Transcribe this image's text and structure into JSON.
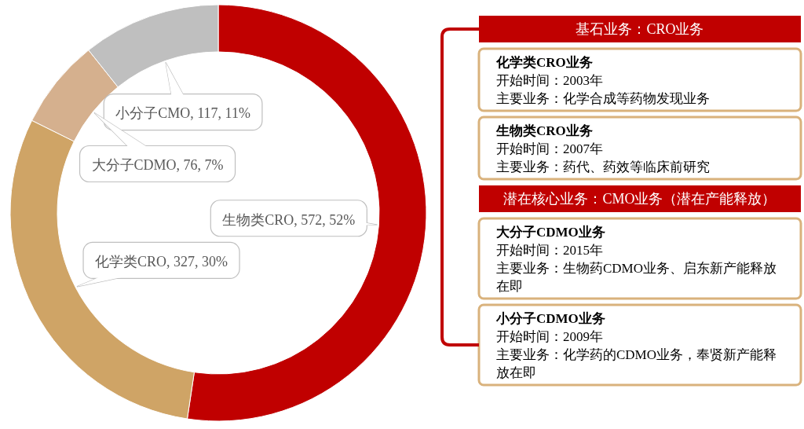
{
  "chart_data": [
    {
      "type": "donut",
      "categories": [
        "生物类CRO",
        "化学类CRO",
        "大分子CDMO",
        "小分子CMO"
      ],
      "values": [
        572,
        327,
        76,
        117
      ],
      "value_labels": [
        "572, 52%",
        "327, 30%",
        "76, 7%",
        "117, 11%"
      ],
      "colors": [
        "#c00000",
        "#cfa466",
        "#d5b08e",
        "#bfbfbf"
      ]
    },
    {
      "type": "other",
      "title": "基石业务：CRO业务"
    },
    {
      "type": "other",
      "title": "化学类CRO业务",
      "annotations": [
        "开始时间：2003年",
        "主要业务：化学合成等药物发现业务"
      ]
    },
    {
      "type": "other",
      "title": "生物类CRO业务",
      "annotations": [
        "开始时间：2007年",
        "主要业务：药代、药效等临床前研究"
      ]
    },
    {
      "type": "other",
      "title": "潜在核心业务：CMO业务（潜在产能释放）"
    },
    {
      "type": "other",
      "title": "大分子CDMO业务",
      "annotations": [
        "开始时间：2015年",
        "主要业务：生物药CDMO业务、启东新产能释放在即"
      ]
    },
    {
      "type": "other",
      "title": "小分子CDMO业务",
      "annotations": [
        "开始时间：2009年",
        "主要业务：化学药的CDMO业务，奉贤新产能释放在即"
      ]
    }
  ]
}
